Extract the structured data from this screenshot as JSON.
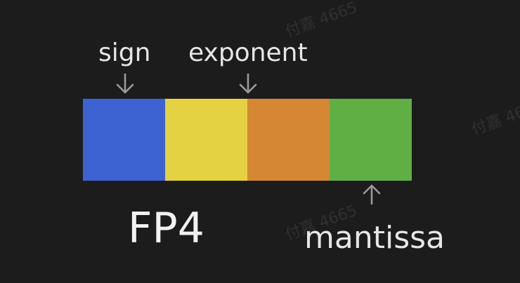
{
  "diagram": {
    "title": "FP4",
    "labels": {
      "sign": "sign",
      "exponent": "exponent",
      "mantissa": "mantissa"
    },
    "bits": [
      {
        "role": "sign",
        "color": "#3d62d2"
      },
      {
        "role": "exponent",
        "color": "#e4d242"
      },
      {
        "role": "exponent",
        "color": "#d68734"
      },
      {
        "role": "mantissa",
        "color": "#60af45"
      }
    ],
    "arrow_color": "#9a9a9a"
  },
  "watermark": {
    "text": "付嘉 4665"
  }
}
